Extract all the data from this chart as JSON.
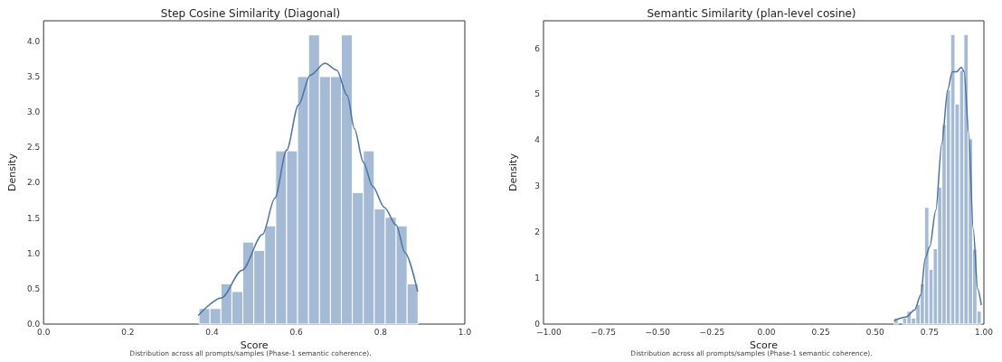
{
  "chart_data": [
    {
      "type": "histogram",
      "title": "Step Cosine Similarity (Diagonal)",
      "xlabel": "Score",
      "ylabel": "Density",
      "annotations": [
        "Distribution across all prompts/samples (Phase-1 semantic coherence)."
      ],
      "grid": false,
      "xlim": [
        0,
        1
      ],
      "xticks": [
        {
          "value": 0,
          "label": "0.0"
        },
        {
          "value": 0.2,
          "label": "0.2"
        },
        {
          "value": 0.4,
          "label": "0.4"
        },
        {
          "value": 0.6,
          "label": "0.6"
        },
        {
          "value": 0.8,
          "label": "0.8"
        },
        {
          "value": 1,
          "label": "1.0"
        }
      ],
      "ylim": [
        0,
        4.29
      ],
      "yticks": [
        {
          "value": 0,
          "label": "0.0"
        },
        {
          "value": 0.5,
          "label": "0.5"
        },
        {
          "value": 1,
          "label": "1.0"
        },
        {
          "value": 1.5,
          "label": "1.5"
        },
        {
          "value": 2,
          "label": "2.0"
        },
        {
          "value": 2.5,
          "label": "2.5"
        },
        {
          "value": 3,
          "label": "3.0"
        },
        {
          "value": 3.5,
          "label": "3.5"
        },
        {
          "value": 4,
          "label": "4.0"
        }
      ],
      "series": [
        {
          "color": "#a5bbd5",
          "bins": [
            0.369,
            0.395,
            0.421,
            0.447,
            0.473,
            0.499,
            0.525,
            0.551,
            0.577,
            0.603,
            0.629,
            0.655,
            0.681,
            0.707,
            0.733,
            0.759,
            0.785,
            0.811,
            0.837,
            0.863,
            0.889
          ],
          "values": [
            0.22,
            0.22,
            0.57,
            0.46,
            1.16,
            1.04,
            1.39,
            2.45,
            2.45,
            3.5,
            4.09,
            3.5,
            3.5,
            4.09,
            1.86,
            2.45,
            1.63,
            1.51,
            1.39,
            0.57
          ]
        },
        {
          "type": "line",
          "color": "#4a72a6",
          "marker": "none",
          "x": [
            0.367,
            0.422,
            0.471,
            0.52,
            0.549,
            0.577,
            0.605,
            0.633,
            0.668,
            0.696,
            0.721,
            0.738,
            0.759,
            0.781,
            0.809,
            0.837,
            0.858,
            0.888
          ],
          "values": [
            0.12,
            0.37,
            0.76,
            1.27,
            1.78,
            2.46,
            3.1,
            3.52,
            3.69,
            3.59,
            3.23,
            2.76,
            2.29,
            1.95,
            1.65,
            1.4,
            1.01,
            0.46
          ]
        }
      ]
    },
    {
      "type": "histogram",
      "title": "Semantic Similarity (plan-level cosine)",
      "xlabel": "Score",
      "ylabel": "Density",
      "annotations": [
        "Distribution across all prompts/samples (Phase-1 semantic coherence)."
      ],
      "grid": false,
      "xlim": [
        -1.025,
        1
      ],
      "xticks": [
        {
          "value": -1,
          "label": "−1.00"
        },
        {
          "value": -0.75,
          "label": "−0.75"
        },
        {
          "value": -0.5,
          "label": "−0.50"
        },
        {
          "value": -0.25,
          "label": "−0.25"
        },
        {
          "value": 0,
          "label": "0.00"
        },
        {
          "value": 0.25,
          "label": "0.25"
        },
        {
          "value": 0.5,
          "label": "0.50"
        },
        {
          "value": 0.75,
          "label": "0.75"
        },
        {
          "value": 1,
          "label": "1.00"
        }
      ],
      "ylim": [
        0,
        6.6
      ],
      "yticks": [
        0,
        1,
        2,
        3,
        4,
        5,
        6
      ],
      "series": [
        {
          "color": "#a5bbd5",
          "bins": [
            0.586,
            0.606,
            0.626,
            0.646,
            0.666,
            0.687,
            0.707,
            0.727,
            0.747,
            0.767,
            0.787,
            0.807,
            0.827,
            0.847,
            0.867,
            0.888,
            0.908,
            0.928,
            0.948,
            0.968,
            0.988
          ],
          "values": [
            0.13,
            0,
            0.13,
            0.28,
            0.13,
            0.43,
            0.88,
            2.54,
            1.19,
            1.64,
            2.98,
            4.34,
            5.1,
            6.3,
            4.79,
            5.52,
            6.3,
            4.03,
            1.63,
            0.28
          ]
        },
        {
          "type": "line",
          "color": "#4a72a6",
          "marker": "none",
          "x": [
            0.586,
            0.641,
            0.682,
            0.71,
            0.73,
            0.751,
            0.779,
            0.806,
            0.834,
            0.854,
            0.875,
            0.896,
            0.909,
            0.93,
            0.951,
            0.971,
            0.988
          ],
          "values": [
            0.07,
            0.15,
            0.31,
            0.64,
            1.43,
            1.69,
            2.48,
            3.92,
            5.1,
            5.49,
            5.49,
            5.59,
            5.49,
            4.17,
            2.07,
            0.77,
            0.41
          ]
        }
      ]
    }
  ]
}
